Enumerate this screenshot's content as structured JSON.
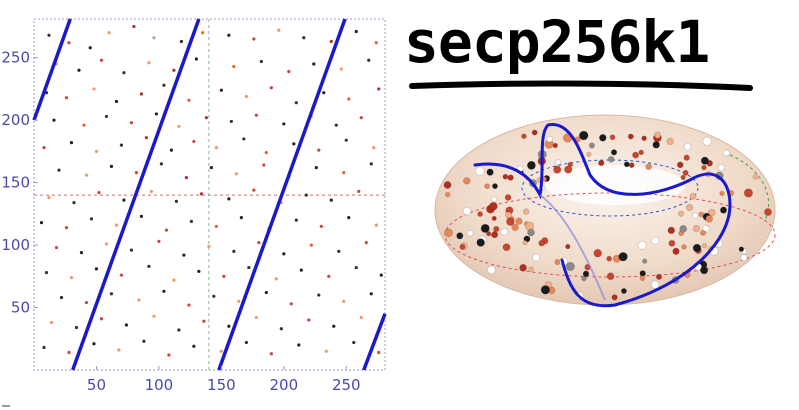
{
  "chart_data": [
    {
      "type": "scatter",
      "title": "",
      "xlabel": "",
      "ylabel": "",
      "xlim": [
        0,
        281
      ],
      "ylim": [
        0,
        281
      ],
      "x_ticks": [
        50,
        100,
        150,
        200,
        250
      ],
      "y_ticks": [
        50,
        100,
        150,
        200,
        250
      ],
      "grid": "dotted midlines",
      "midlines": {
        "x": 140,
        "y": 140
      },
      "colors": {
        "frame": "#9a9ac8",
        "ticks": "#4a4aa6",
        "line": "#1a1acc",
        "h_midline": "#d07070",
        "v_midline": "#88b888"
      },
      "lines": [
        {
          "name": "",
          "points": [
            [
              0,
              200
            ],
            [
              29,
              281
            ]
          ]
        },
        {
          "name": "",
          "points": [
            [
              31,
              0
            ],
            [
              132,
              281
            ]
          ]
        },
        {
          "name": "",
          "points": [
            [
              148,
              0
            ],
            [
              249,
              281
            ]
          ]
        },
        {
          "name": "",
          "points": [
            [
              264,
              0
            ],
            [
              281,
              45
            ]
          ]
        }
      ],
      "points": [
        [
          12,
          268,
          "#333"
        ],
        [
          28,
          262,
          "#c44"
        ],
        [
          45,
          258,
          "#222"
        ],
        [
          60,
          270,
          "#e96"
        ],
        [
          80,
          275,
          "#a33"
        ],
        [
          96,
          266,
          "#aaa"
        ],
        [
          118,
          263,
          "#333"
        ],
        [
          135,
          270,
          "#d63"
        ],
        [
          156,
          268,
          "#222"
        ],
        [
          176,
          265,
          "#c44"
        ],
        [
          196,
          272,
          "#e96"
        ],
        [
          216,
          266,
          "#333"
        ],
        [
          238,
          263,
          "#a33"
        ],
        [
          258,
          271,
          "#222"
        ],
        [
          274,
          262,
          "#d63"
        ],
        [
          18,
          245,
          "#e96"
        ],
        [
          36,
          240,
          "#222"
        ],
        [
          54,
          248,
          "#c44"
        ],
        [
          72,
          238,
          "#333"
        ],
        [
          92,
          246,
          "#e96"
        ],
        [
          112,
          240,
          "#a33"
        ],
        [
          130,
          249,
          "#222"
        ],
        [
          160,
          243,
          "#d63"
        ],
        [
          182,
          247,
          "#333"
        ],
        [
          204,
          239,
          "#c44"
        ],
        [
          224,
          245,
          "#222"
        ],
        [
          246,
          241,
          "#e96"
        ],
        [
          268,
          248,
          "#333"
        ],
        [
          10,
          222,
          "#333"
        ],
        [
          26,
          218,
          "#c44"
        ],
        [
          48,
          225,
          "#e96"
        ],
        [
          66,
          215,
          "#222"
        ],
        [
          86,
          221,
          "#a33"
        ],
        [
          104,
          228,
          "#333"
        ],
        [
          124,
          216,
          "#d63"
        ],
        [
          150,
          224,
          "#222"
        ],
        [
          170,
          219,
          "#e96"
        ],
        [
          190,
          226,
          "#c44"
        ],
        [
          210,
          214,
          "#333"
        ],
        [
          232,
          222,
          "#222"
        ],
        [
          252,
          217,
          "#d63"
        ],
        [
          276,
          225,
          "#a33"
        ],
        [
          16,
          200,
          "#222"
        ],
        [
          40,
          196,
          "#d63"
        ],
        [
          58,
          203,
          "#333"
        ],
        [
          78,
          198,
          "#c44"
        ],
        [
          98,
          205,
          "#222"
        ],
        [
          116,
          195,
          "#e96"
        ],
        [
          138,
          202,
          "#a33"
        ],
        [
          158,
          199,
          "#333"
        ],
        [
          178,
          204,
          "#c44"
        ],
        [
          200,
          197,
          "#222"
        ],
        [
          222,
          203,
          "#e96"
        ],
        [
          242,
          196,
          "#333"
        ],
        [
          262,
          202,
          "#c44"
        ],
        [
          8,
          178,
          "#c44"
        ],
        [
          30,
          182,
          "#222"
        ],
        [
          50,
          175,
          "#e96"
        ],
        [
          70,
          180,
          "#333"
        ],
        [
          90,
          186,
          "#a33"
        ],
        [
          110,
          176,
          "#222"
        ],
        [
          128,
          183,
          "#c44"
        ],
        [
          146,
          178,
          "#e96"
        ],
        [
          168,
          185,
          "#333"
        ],
        [
          186,
          174,
          "#d63"
        ],
        [
          208,
          181,
          "#222"
        ],
        [
          228,
          176,
          "#c44"
        ],
        [
          250,
          184,
          "#333"
        ],
        [
          272,
          178,
          "#e96"
        ],
        [
          20,
          160,
          "#333"
        ],
        [
          42,
          156,
          "#e96"
        ],
        [
          62,
          163,
          "#222"
        ],
        [
          82,
          158,
          "#c44"
        ],
        [
          102,
          165,
          "#333"
        ],
        [
          122,
          154,
          "#a33"
        ],
        [
          142,
          162,
          "#222"
        ],
        [
          162,
          157,
          "#e96"
        ],
        [
          184,
          164,
          "#c44"
        ],
        [
          204,
          155,
          "#333"
        ],
        [
          226,
          162,
          "#222"
        ],
        [
          248,
          158,
          "#d63"
        ],
        [
          270,
          165,
          "#333"
        ],
        [
          12,
          138,
          "#e96"
        ],
        [
          32,
          134,
          "#333"
        ],
        [
          52,
          142,
          "#c44"
        ],
        [
          72,
          136,
          "#222"
        ],
        [
          94,
          143,
          "#e96"
        ],
        [
          114,
          135,
          "#333"
        ],
        [
          134,
          141,
          "#a33"
        ],
        [
          156,
          137,
          "#222"
        ],
        [
          176,
          144,
          "#c44"
        ],
        [
          198,
          134,
          "#e96"
        ],
        [
          218,
          140,
          "#333"
        ],
        [
          238,
          136,
          "#222"
        ],
        [
          260,
          143,
          "#c44"
        ],
        [
          6,
          118,
          "#222"
        ],
        [
          26,
          114,
          "#c44"
        ],
        [
          46,
          121,
          "#333"
        ],
        [
          66,
          116,
          "#e96"
        ],
        [
          86,
          123,
          "#222"
        ],
        [
          106,
          112,
          "#c44"
        ],
        [
          126,
          119,
          "#333"
        ],
        [
          146,
          115,
          "#d63"
        ],
        [
          166,
          122,
          "#222"
        ],
        [
          188,
          113,
          "#e96"
        ],
        [
          210,
          120,
          "#333"
        ],
        [
          230,
          115,
          "#c44"
        ],
        [
          252,
          122,
          "#222"
        ],
        [
          274,
          116,
          "#e96"
        ],
        [
          18,
          98,
          "#c44"
        ],
        [
          38,
          94,
          "#222"
        ],
        [
          58,
          101,
          "#e96"
        ],
        [
          78,
          96,
          "#333"
        ],
        [
          100,
          103,
          "#c44"
        ],
        [
          120,
          92,
          "#222"
        ],
        [
          140,
          99,
          "#e96"
        ],
        [
          160,
          95,
          "#333"
        ],
        [
          180,
          102,
          "#c44"
        ],
        [
          200,
          93,
          "#222"
        ],
        [
          222,
          100,
          "#d63"
        ],
        [
          244,
          95,
          "#333"
        ],
        [
          266,
          102,
          "#c44"
        ],
        [
          10,
          78,
          "#333"
        ],
        [
          30,
          74,
          "#e96"
        ],
        [
          50,
          81,
          "#222"
        ],
        [
          70,
          76,
          "#c44"
        ],
        [
          92,
          83,
          "#333"
        ],
        [
          112,
          72,
          "#e96"
        ],
        [
          132,
          79,
          "#222"
        ],
        [
          152,
          75,
          "#c44"
        ],
        [
          172,
          82,
          "#333"
        ],
        [
          194,
          73,
          "#e96"
        ],
        [
          214,
          80,
          "#222"
        ],
        [
          236,
          75,
          "#c44"
        ],
        [
          258,
          82,
          "#333"
        ],
        [
          278,
          76,
          "#222"
        ],
        [
          22,
          58,
          "#222"
        ],
        [
          42,
          54,
          "#c44"
        ],
        [
          62,
          61,
          "#333"
        ],
        [
          84,
          56,
          "#e96"
        ],
        [
          104,
          63,
          "#222"
        ],
        [
          124,
          52,
          "#c44"
        ],
        [
          144,
          59,
          "#333"
        ],
        [
          164,
          55,
          "#e96"
        ],
        [
          186,
          62,
          "#222"
        ],
        [
          206,
          53,
          "#c44"
        ],
        [
          228,
          60,
          "#333"
        ],
        [
          248,
          55,
          "#e96"
        ],
        [
          270,
          61,
          "#222"
        ],
        [
          14,
          38,
          "#e96"
        ],
        [
          34,
          34,
          "#333"
        ],
        [
          54,
          41,
          "#c44"
        ],
        [
          74,
          36,
          "#222"
        ],
        [
          96,
          43,
          "#e96"
        ],
        [
          116,
          32,
          "#333"
        ],
        [
          136,
          39,
          "#c44"
        ],
        [
          156,
          35,
          "#222"
        ],
        [
          178,
          42,
          "#e96"
        ],
        [
          198,
          33,
          "#333"
        ],
        [
          220,
          40,
          "#c44"
        ],
        [
          240,
          35,
          "#222"
        ],
        [
          262,
          42,
          "#e96"
        ],
        [
          8,
          18,
          "#333"
        ],
        [
          28,
          14,
          "#c44"
        ],
        [
          48,
          21,
          "#222"
        ],
        [
          68,
          16,
          "#e96"
        ],
        [
          88,
          23,
          "#333"
        ],
        [
          108,
          12,
          "#c44"
        ],
        [
          128,
          19,
          "#222"
        ],
        [
          150,
          15,
          "#e96"
        ],
        [
          170,
          22,
          "#333"
        ],
        [
          190,
          13,
          "#c44"
        ],
        [
          212,
          20,
          "#222"
        ],
        [
          234,
          15,
          "#e96"
        ],
        [
          256,
          22,
          "#333"
        ],
        [
          276,
          14,
          "#c44"
        ]
      ]
    },
    {
      "type": "scatter",
      "title": "",
      "note": "torus",
      "colors": {
        "body": "#f3e3d6",
        "curve": "#1a1acc",
        "dash_blue": "#3050d0",
        "dash_red": "#e05050",
        "dash_green": "#40a040"
      }
    }
  ],
  "header": {
    "title": "secp256k1"
  }
}
